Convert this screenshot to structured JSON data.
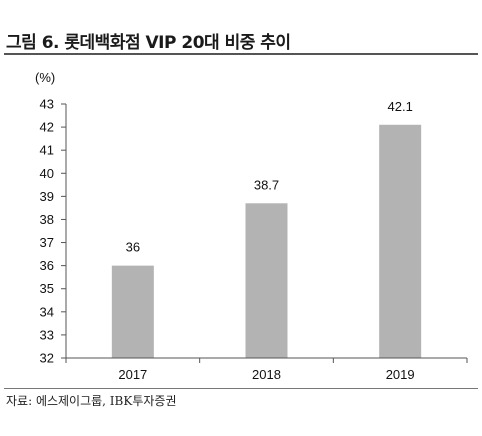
{
  "title": "그림 6. 롯데백화점 VIP 20대 비중 추이",
  "source": "자료: 에스제이그룹, IBK투자증권",
  "colors": {
    "bar": "#b3b3b3",
    "axis": "#555555",
    "rule": "#555555"
  },
  "chart_data": {
    "type": "bar",
    "categories": [
      "2017",
      "2018",
      "2019"
    ],
    "values": [
      36,
      38.7,
      42.1
    ],
    "data_labels": [
      "36",
      "38.7",
      "42.1"
    ],
    "unit_label": "(%)",
    "ylim": [
      32,
      43
    ],
    "yticks": [
      "32",
      "33",
      "34",
      "35",
      "36",
      "37",
      "38",
      "39",
      "40",
      "41",
      "42",
      "43"
    ],
    "grid": false,
    "legend": "none"
  }
}
